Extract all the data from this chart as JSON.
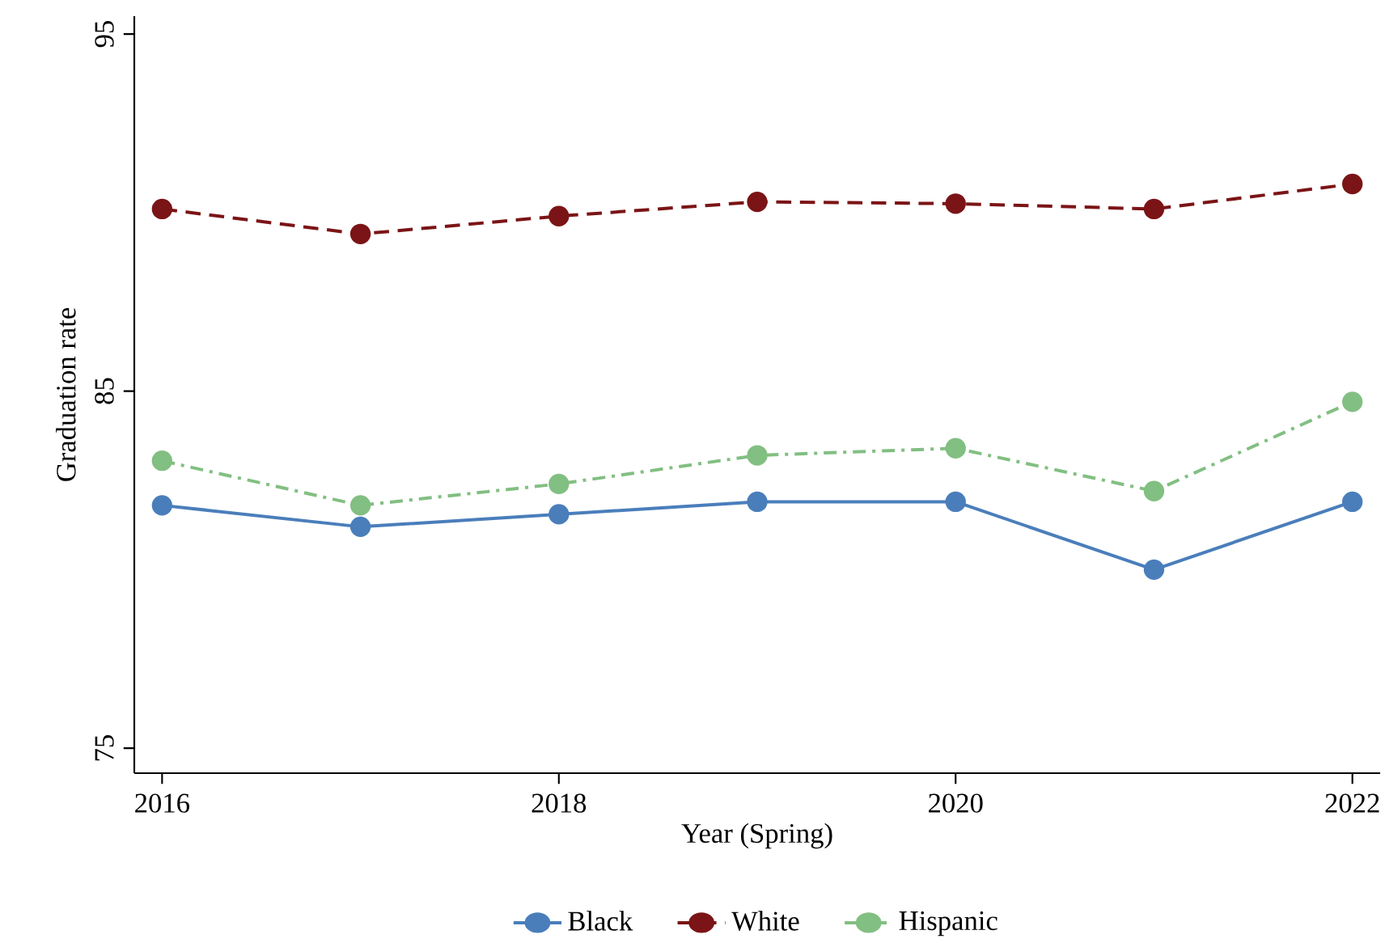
{
  "chart_data": {
    "type": "line",
    "xlabel": "Year (Spring)",
    "ylabel": "Graduation rate",
    "x": [
      2016,
      2017,
      2018,
      2019,
      2020,
      2021,
      2022
    ],
    "series": [
      {
        "name": "Black",
        "color": "#4a7ebb",
        "line_style": "solid",
        "values": [
          81.8,
          81.2,
          81.55,
          81.9,
          81.9,
          80.0,
          81.9
        ]
      },
      {
        "name": "White",
        "color": "#7b1416",
        "line_style": "dashed",
        "values": [
          90.1,
          89.4,
          89.9,
          90.3,
          90.25,
          90.1,
          90.8
        ]
      },
      {
        "name": "Hispanic",
        "color": "#82bf82",
        "line_style": "dashdot",
        "values": [
          83.05,
          81.8,
          82.4,
          83.2,
          83.4,
          82.2,
          84.7
        ]
      }
    ],
    "marker": "circle",
    "legend": "bottom",
    "grid": false,
    "xlim": [
      2015.86,
      2022.14
    ],
    "ylim": [
      74.3,
      95.5
    ],
    "xticks": [
      2016,
      2018,
      2020,
      2022
    ],
    "yticks": [
      75,
      85,
      95
    ]
  }
}
